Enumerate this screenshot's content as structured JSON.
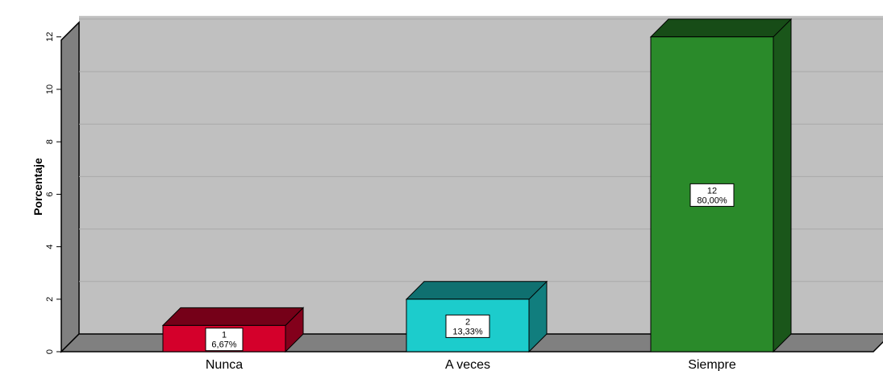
{
  "chart_data": {
    "type": "bar",
    "title": "",
    "xlabel": "",
    "ylabel": "Porcentaje",
    "ylim": [
      0,
      12
    ],
    "yticks": [
      0,
      2,
      4,
      6,
      8,
      10,
      12
    ],
    "grid": true,
    "categories": [
      "Nunca",
      "A veces",
      "Siempre"
    ],
    "values": [
      1,
      2,
      12
    ],
    "value_labels": [
      "1",
      "2",
      "12"
    ],
    "percent_labels": [
      "6,67%",
      "13,33%",
      "80,00%"
    ],
    "colors": [
      "#d4002b",
      "#1ccccc",
      "#2a8a2a"
    ]
  }
}
